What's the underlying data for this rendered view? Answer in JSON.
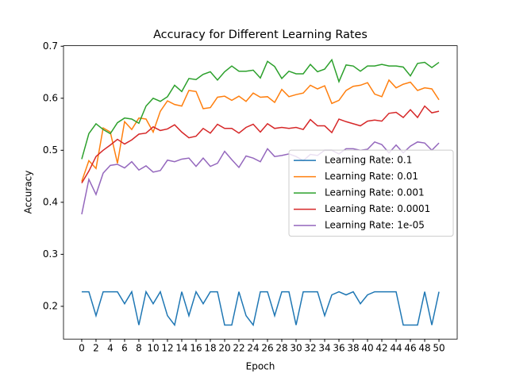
{
  "chart_data": {
    "type": "line",
    "title": "Accuracy for Different Learning Rates",
    "x_label": "Epoch",
    "y_label": "Accuracy",
    "x": [
      0,
      1,
      2,
      3,
      4,
      5,
      6,
      7,
      8,
      9,
      10,
      11,
      12,
      13,
      14,
      15,
      16,
      17,
      18,
      19,
      20,
      21,
      22,
      23,
      24,
      25,
      26,
      27,
      28,
      29,
      30,
      31,
      32,
      33,
      34,
      35,
      36,
      37,
      38,
      39,
      40,
      41,
      42,
      43,
      44,
      45,
      46,
      47,
      48,
      49,
      50
    ],
    "xlim": [
      -2.55,
      52.55
    ],
    "xticks": [
      0,
      2,
      4,
      6,
      8,
      10,
      12,
      14,
      16,
      18,
      20,
      22,
      24,
      26,
      28,
      30,
      32,
      34,
      36,
      38,
      40,
      42,
      44,
      46,
      48,
      50
    ],
    "ylim": [
      0.137,
      0.701
    ],
    "yticks": [
      0.2,
      0.3,
      0.4,
      0.5,
      0.6,
      0.7
    ],
    "grid": false,
    "legend_position": "center right",
    "series": [
      {
        "name": "Learning Rate: 0.1",
        "color": "#1f77b4",
        "values": [
          0.228,
          0.228,
          0.182,
          0.228,
          0.228,
          0.228,
          0.205,
          0.228,
          0.164,
          0.228,
          0.205,
          0.228,
          0.182,
          0.164,
          0.228,
          0.182,
          0.228,
          0.205,
          0.228,
          0.228,
          0.164,
          0.164,
          0.228,
          0.182,
          0.164,
          0.228,
          0.228,
          0.182,
          0.228,
          0.228,
          0.164,
          0.228,
          0.228,
          0.228,
          0.182,
          0.222,
          0.228,
          0.222,
          0.228,
          0.205,
          0.222,
          0.228,
          0.228,
          0.228,
          0.228,
          0.164,
          0.164,
          0.164,
          0.228,
          0.164,
          0.228
        ]
      },
      {
        "name": "Learning Rate: 0.01",
        "color": "#ff7f0e",
        "values": [
          0.44,
          0.48,
          0.465,
          0.543,
          0.535,
          0.475,
          0.555,
          0.54,
          0.562,
          0.56,
          0.535,
          0.575,
          0.595,
          0.588,
          0.585,
          0.615,
          0.613,
          0.58,
          0.582,
          0.602,
          0.604,
          0.596,
          0.604,
          0.594,
          0.61,
          0.602,
          0.603,
          0.592,
          0.617,
          0.603,
          0.607,
          0.61,
          0.625,
          0.618,
          0.624,
          0.59,
          0.596,
          0.615,
          0.623,
          0.625,
          0.63,
          0.608,
          0.603,
          0.635,
          0.62,
          0.627,
          0.631,
          0.615,
          0.62,
          0.618,
          0.597
        ]
      },
      {
        "name": "Learning Rate: 0.001",
        "color": "#2ca02c",
        "values": [
          0.483,
          0.532,
          0.551,
          0.54,
          0.532,
          0.553,
          0.562,
          0.56,
          0.552,
          0.585,
          0.6,
          0.594,
          0.603,
          0.625,
          0.613,
          0.638,
          0.636,
          0.646,
          0.651,
          0.635,
          0.651,
          0.662,
          0.652,
          0.652,
          0.654,
          0.639,
          0.671,
          0.661,
          0.638,
          0.652,
          0.647,
          0.647,
          0.665,
          0.651,
          0.656,
          0.674,
          0.632,
          0.664,
          0.662,
          0.652,
          0.662,
          0.662,
          0.665,
          0.662,
          0.662,
          0.66,
          0.643,
          0.667,
          0.669,
          0.659,
          0.669
        ]
      },
      {
        "name": "Learning Rate: 0.0001",
        "color": "#d62728",
        "values": [
          0.437,
          0.46,
          0.488,
          0.5,
          0.51,
          0.521,
          0.512,
          0.52,
          0.531,
          0.533,
          0.545,
          0.538,
          0.541,
          0.549,
          0.535,
          0.524,
          0.527,
          0.542,
          0.533,
          0.55,
          0.542,
          0.542,
          0.533,
          0.544,
          0.55,
          0.535,
          0.551,
          0.542,
          0.544,
          0.542,
          0.544,
          0.54,
          0.559,
          0.547,
          0.547,
          0.534,
          0.56,
          0.555,
          0.551,
          0.547,
          0.556,
          0.558,
          0.556,
          0.571,
          0.573,
          0.563,
          0.578,
          0.563,
          0.585,
          0.572,
          0.575
        ]
      },
      {
        "name": "Learning Rate: 1e-05",
        "color": "#9467bd",
        "values": [
          0.377,
          0.444,
          0.415,
          0.456,
          0.471,
          0.473,
          0.466,
          0.478,
          0.462,
          0.47,
          0.458,
          0.461,
          0.481,
          0.478,
          0.483,
          0.485,
          0.469,
          0.485,
          0.469,
          0.475,
          0.498,
          0.482,
          0.467,
          0.489,
          0.485,
          0.478,
          0.503,
          0.488,
          0.49,
          0.493,
          0.488,
          0.48,
          0.492,
          0.49,
          0.5,
          0.5,
          0.493,
          0.503,
          0.503,
          0.5,
          0.502,
          0.516,
          0.511,
          0.495,
          0.51,
          0.495,
          0.508,
          0.516,
          0.514,
          0.5,
          0.514
        ]
      }
    ]
  }
}
